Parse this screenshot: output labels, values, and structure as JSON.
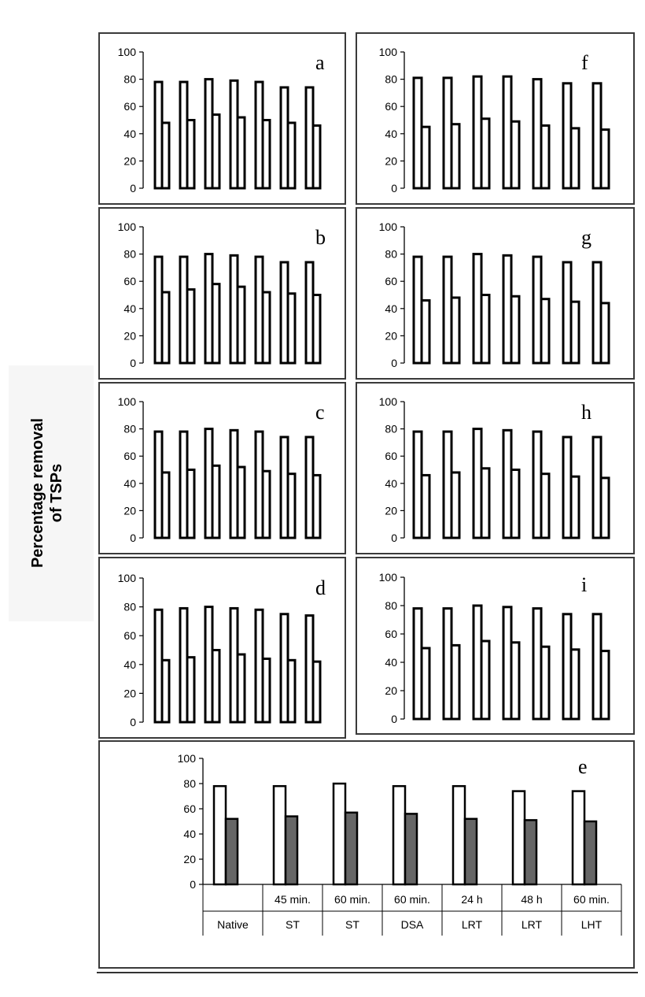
{
  "y_axis_title": [
    "Percentage removal",
    "of TSPs"
  ],
  "colors": {
    "bar_light": "#ffffff",
    "bar_dark": "#666666",
    "stroke": "#000000",
    "frame": "#3a3a3a"
  },
  "chart_data": [
    {
      "type": "bar",
      "panel_label": "a",
      "ylim": [
        0,
        100
      ],
      "yticks": [
        0,
        20,
        40,
        60,
        80,
        100
      ],
      "series": [
        {
          "values": [
            78,
            78,
            80,
            79,
            78,
            74,
            74
          ]
        },
        {
          "values": [
            48,
            50,
            54,
            52,
            50,
            48,
            46
          ]
        }
      ]
    },
    {
      "type": "bar",
      "panel_label": "b",
      "ylim": [
        0,
        100
      ],
      "yticks": [
        0,
        20,
        40,
        60,
        80,
        100
      ],
      "series": [
        {
          "values": [
            78,
            78,
            80,
            79,
            78,
            74,
            74
          ]
        },
        {
          "values": [
            52,
            54,
            58,
            56,
            52,
            51,
            50
          ]
        }
      ]
    },
    {
      "type": "bar",
      "panel_label": "c",
      "ylim": [
        0,
        100
      ],
      "yticks": [
        0,
        20,
        40,
        60,
        80,
        100
      ],
      "series": [
        {
          "values": [
            78,
            78,
            80,
            79,
            78,
            74,
            74
          ]
        },
        {
          "values": [
            48,
            50,
            53,
            52,
            49,
            47,
            46
          ]
        }
      ]
    },
    {
      "type": "bar",
      "panel_label": "d",
      "ylim": [
        0,
        100
      ],
      "yticks": [
        0,
        20,
        40,
        60,
        80,
        100
      ],
      "series": [
        {
          "values": [
            78,
            79,
            80,
            79,
            78,
            75,
            74
          ]
        },
        {
          "values": [
            43,
            45,
            50,
            47,
            44,
            43,
            42
          ]
        }
      ]
    },
    {
      "type": "bar",
      "panel_label": "f",
      "ylim": [
        0,
        100
      ],
      "yticks": [
        0,
        20,
        40,
        60,
        80,
        100
      ],
      "series": [
        {
          "values": [
            81,
            81,
            82,
            82,
            80,
            77,
            77
          ]
        },
        {
          "values": [
            45,
            47,
            51,
            49,
            46,
            44,
            43
          ]
        }
      ]
    },
    {
      "type": "bar",
      "panel_label": "g",
      "ylim": [
        0,
        100
      ],
      "yticks": [
        0,
        20,
        40,
        60,
        80,
        100
      ],
      "series": [
        {
          "values": [
            78,
            78,
            80,
            79,
            78,
            74,
            74
          ]
        },
        {
          "values": [
            46,
            48,
            50,
            49,
            47,
            45,
            44
          ]
        }
      ]
    },
    {
      "type": "bar",
      "panel_label": "h",
      "ylim": [
        0,
        100
      ],
      "yticks": [
        0,
        20,
        40,
        60,
        80,
        100
      ],
      "series": [
        {
          "values": [
            78,
            78,
            80,
            79,
            78,
            74,
            74
          ]
        },
        {
          "values": [
            46,
            48,
            51,
            50,
            47,
            45,
            44
          ]
        }
      ]
    },
    {
      "type": "bar",
      "panel_label": "i",
      "ylim": [
        0,
        100
      ],
      "yticks": [
        0,
        20,
        40,
        60,
        80,
        100
      ],
      "series": [
        {
          "values": [
            78,
            78,
            80,
            79,
            78,
            74,
            74
          ]
        },
        {
          "values": [
            50,
            52,
            55,
            54,
            51,
            49,
            48
          ]
        }
      ]
    },
    {
      "type": "bar",
      "panel_label": "e",
      "ylim": [
        0,
        100
      ],
      "yticks": [
        0,
        20,
        40,
        60,
        80,
        100
      ],
      "categories": [
        [
          "",
          "Native"
        ],
        [
          "45 min.",
          "ST"
        ],
        [
          "60 min.",
          "ST"
        ],
        [
          "60 min.",
          "DSA"
        ],
        [
          "24 h",
          "LRT"
        ],
        [
          "48 h",
          "LRT"
        ],
        [
          "60 min.",
          "LHT"
        ]
      ],
      "series": [
        {
          "values": [
            78,
            78,
            80,
            78,
            78,
            74,
            74
          ]
        },
        {
          "values": [
            52,
            54,
            57,
            56,
            52,
            51,
            50
          ]
        }
      ]
    }
  ]
}
